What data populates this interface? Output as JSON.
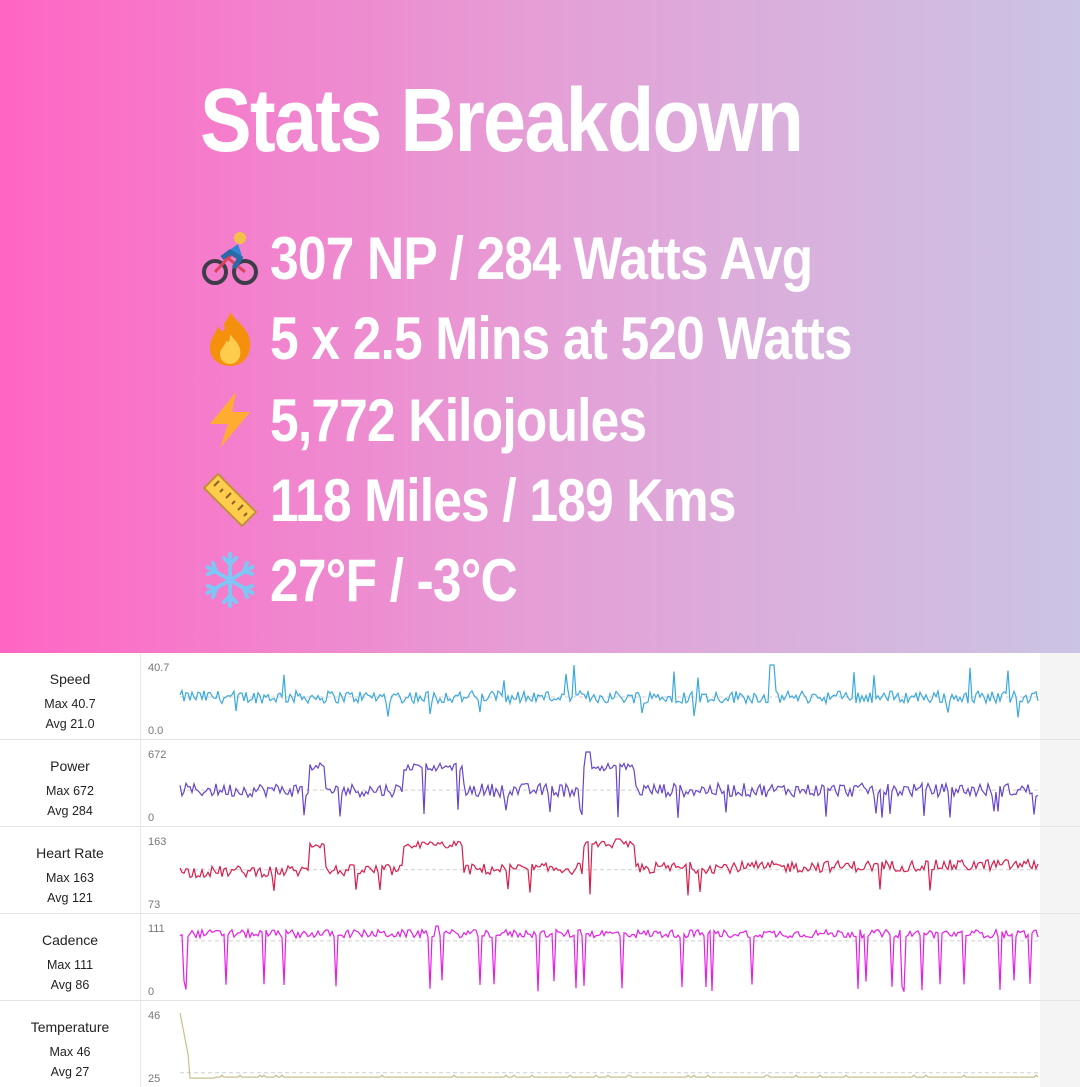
{
  "hero": {
    "title": "Stats Breakdown",
    "stats": [
      {
        "icon": "cyclist-icon",
        "text": "307 NP / 284 Watts Avg"
      },
      {
        "icon": "fire-icon",
        "text": "5 x 2.5 Mins at 520 Watts"
      },
      {
        "icon": "lightning-icon",
        "text": "5,772 Kilojoules"
      },
      {
        "icon": "ruler-icon",
        "text": "118 Miles / 189 Kms"
      },
      {
        "icon": "snowflake-icon",
        "text": "27°F / -3°C"
      }
    ]
  },
  "chart_data": [
    {
      "type": "line",
      "name": "Speed",
      "max_label": "Max 40.7",
      "avg_label": "Avg 21.0",
      "ymax_tick": "40.7",
      "ymin_tick": "0.0",
      "ylim": [
        0,
        40.7
      ],
      "max": 40.7,
      "avg": 21.0,
      "color": "#3ba9e0",
      "profile": "speed"
    },
    {
      "type": "line",
      "name": "Power",
      "max_label": "Max 672",
      "avg_label": "Avg 284",
      "ymax_tick": "672",
      "ymin_tick": "0",
      "ylim": [
        0,
        672
      ],
      "max": 672,
      "avg": 284,
      "color": "#6645cc",
      "profile": "power"
    },
    {
      "type": "line",
      "name": "Heart Rate",
      "max_label": "Max 163",
      "avg_label": "Avg 121",
      "ymax_tick": "163",
      "ymin_tick": "73",
      "ylim": [
        73,
        163
      ],
      "max": 163,
      "avg": 121,
      "color": "#d81e4b",
      "profile": "hr"
    },
    {
      "type": "line",
      "name": "Cadence",
      "max_label": "Max 111",
      "avg_label": "Avg 86",
      "ymax_tick": "111",
      "ymin_tick": "0",
      "ylim": [
        0,
        111
      ],
      "max": 111,
      "avg": 86,
      "color": "#e61ee6",
      "profile": "cadence"
    },
    {
      "type": "line",
      "name": "Temperature",
      "max_label": "Max 46",
      "avg_label": "Avg 27",
      "ymax_tick": "46",
      "ymin_tick": "25",
      "ylim": [
        25,
        46
      ],
      "max": 46,
      "avg": 27,
      "color": "#c9bf8f",
      "profile": "temp"
    }
  ]
}
